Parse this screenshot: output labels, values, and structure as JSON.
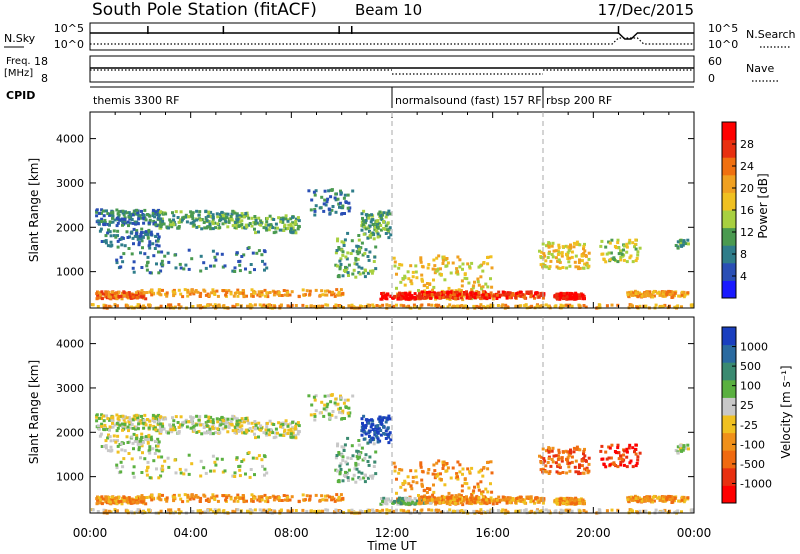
{
  "header": {
    "station": "South Pole Station (fitACF)",
    "beam": "Beam 10",
    "date": "17/Dec/2015"
  },
  "top_panels": {
    "nsky_label": "N.Sky",
    "nsearch_label": "N.Search",
    "nsky_ticks": [
      "10^5",
      "10^0"
    ],
    "nsky_right_ticks": [
      "10^5",
      "10^0"
    ],
    "freq_label": "Freq.",
    "freq_unit": "[MHz]",
    "freq_ticks": [
      "18",
      "8"
    ],
    "nave_label": "Nave",
    "nave_ticks": [
      "60",
      "0"
    ],
    "cpid_label": "CPID"
  },
  "cpid_segments": [
    {
      "label": "themis 3300 RF",
      "start_hour": 0
    },
    {
      "label": "normalsound (fast) 157 RF",
      "start_hour": 12
    },
    {
      "label": "rbsp 200 RF",
      "start_hour": 18
    }
  ],
  "chart_data": [
    {
      "type": "heatmap",
      "name": "power-panel",
      "ylabel": "Slant Range [km]",
      "yticks": [
        "1000",
        "2000",
        "3000",
        "4000"
      ],
      "ylim": [
        180,
        4600
      ],
      "xlim": [
        0,
        24
      ],
      "colorbar_label": "Power [dB]",
      "colorbar_ticks": [
        "4",
        "8",
        "12",
        "16",
        "20",
        "24",
        "28"
      ],
      "colors": [
        "#1a1aff",
        "#2a4fb5",
        "#2f7d8a",
        "#4a9a50",
        "#a8d040",
        "#f0c020",
        "#f0a020",
        "#f07010",
        "#e83010",
        "#ff0000"
      ]
    },
    {
      "type": "heatmap",
      "name": "velocity-panel",
      "ylabel": "Slant Range [km]",
      "yticks": [
        "1000",
        "2000",
        "3000",
        "4000"
      ],
      "ylim": [
        180,
        4600
      ],
      "xlim": [
        0,
        24
      ],
      "xlabel": "Time UT",
      "xticks": [
        "00:00",
        "04:00",
        "08:00",
        "12:00",
        "16:00",
        "20:00",
        "00:00"
      ],
      "colorbar_label": "Velocity [m s⁻¹]",
      "colorbar_ticks": [
        "1000",
        "500",
        "100",
        "25",
        "-25",
        "-100",
        "-500",
        "-1000"
      ],
      "colors": [
        "#1a3fbf",
        "#2a6aa0",
        "#3a8a70",
        "#5ab040",
        "#c8c8c8",
        "#f0c020",
        "#f0901a",
        "#f06a10",
        "#e83010",
        "#ff0000"
      ]
    }
  ]
}
